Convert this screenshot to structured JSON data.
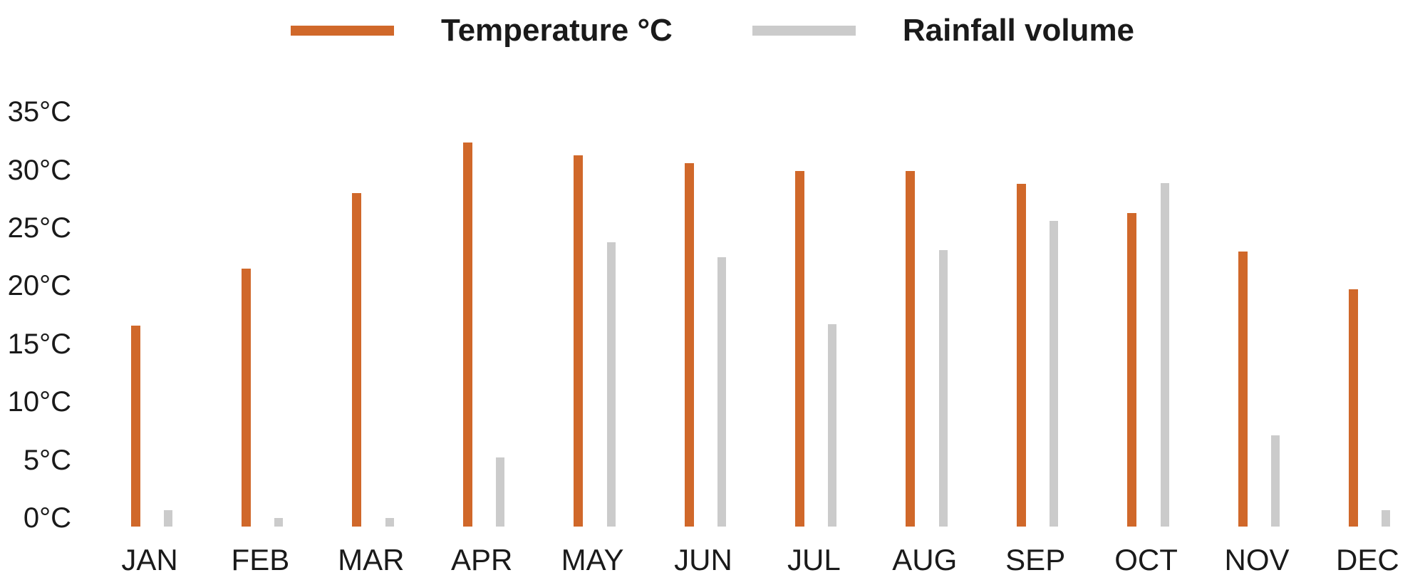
{
  "legend": {
    "items": [
      {
        "label": "Temperature °C",
        "color": "#d0682a",
        "series": "temperature"
      },
      {
        "label": "Rainfall volume",
        "color": "#cbcbcb",
        "series": "rainfall"
      }
    ]
  },
  "chart_data": {
    "type": "bar",
    "title": "",
    "xlabel": "",
    "ylabel": "",
    "categories": [
      "JAN",
      "FEB",
      "MAR",
      "APR",
      "MAY",
      "JUN",
      "JUL",
      "AUG",
      "SEP",
      "OCT",
      "NOV",
      "DEC"
    ],
    "series": [
      {
        "name": "Temperature °C",
        "color": "#d0682a",
        "values": [
          16.6,
          21.5,
          28.0,
          32.4,
          31.3,
          30.6,
          29.9,
          29.9,
          28.8,
          26.3,
          23.0,
          19.7
        ]
      },
      {
        "name": "Rainfall volume",
        "color": "#cbcbcb",
        "values": [
          0.7,
          0.0,
          0.0,
          5.2,
          23.8,
          22.5,
          16.7,
          23.1,
          25.6,
          28.9,
          7.1,
          0.7
        ]
      }
    ],
    "y_ticks": [
      {
        "label": "35°C",
        "value": 35
      },
      {
        "label": "30°C",
        "value": 30
      },
      {
        "label": "25°C",
        "value": 25
      },
      {
        "label": "20°C",
        "value": 20
      },
      {
        "label": "15°C",
        "value": 15
      },
      {
        "label": "10°C",
        "value": 10
      },
      {
        "label": "5°C",
        "value": 5
      },
      {
        "label": "0°C",
        "value": 0
      }
    ],
    "ylim": [
      -0.75,
      37
    ],
    "grid": false,
    "legend_position": "top"
  },
  "colors": {
    "background": "#ffffff",
    "text": "#1a1a1a",
    "temperature": "#d0682a",
    "rainfall": "#cbcbcb"
  }
}
